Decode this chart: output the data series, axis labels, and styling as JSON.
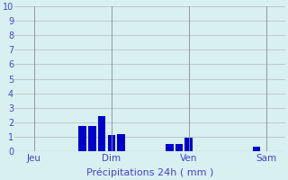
{
  "title": "",
  "xlabel": "Précipitations 24h ( mm )",
  "ylabel": "",
  "ylim": [
    0,
    10
  ],
  "yticks": [
    0,
    1,
    2,
    3,
    4,
    5,
    6,
    7,
    8,
    9,
    10
  ],
  "background_color": "#d8f0f0",
  "bar_color": "#0000cd",
  "grid_color": "#b8b8b8",
  "label_color": "#4444cc",
  "bars": [
    {
      "x": 7,
      "height": 1.75
    },
    {
      "x": 8,
      "height": 1.75
    },
    {
      "x": 9,
      "height": 2.45
    },
    {
      "x": 10,
      "height": 1.15
    },
    {
      "x": 11,
      "height": 1.2
    },
    {
      "x": 16,
      "height": 0.55
    },
    {
      "x": 17,
      "height": 0.55
    },
    {
      "x": 18,
      "height": 0.95
    },
    {
      "x": 25,
      "height": 0.35
    }
  ],
  "day_labels": [
    {
      "label": "Jeu",
      "x": 2
    },
    {
      "label": "Dim",
      "x": 10
    },
    {
      "label": "Ven",
      "x": 18
    },
    {
      "label": "Sam",
      "x": 26
    }
  ],
  "day_lines": [
    2,
    10,
    18,
    26
  ],
  "xlim": [
    0,
    28
  ],
  "bar_width": 0.8
}
